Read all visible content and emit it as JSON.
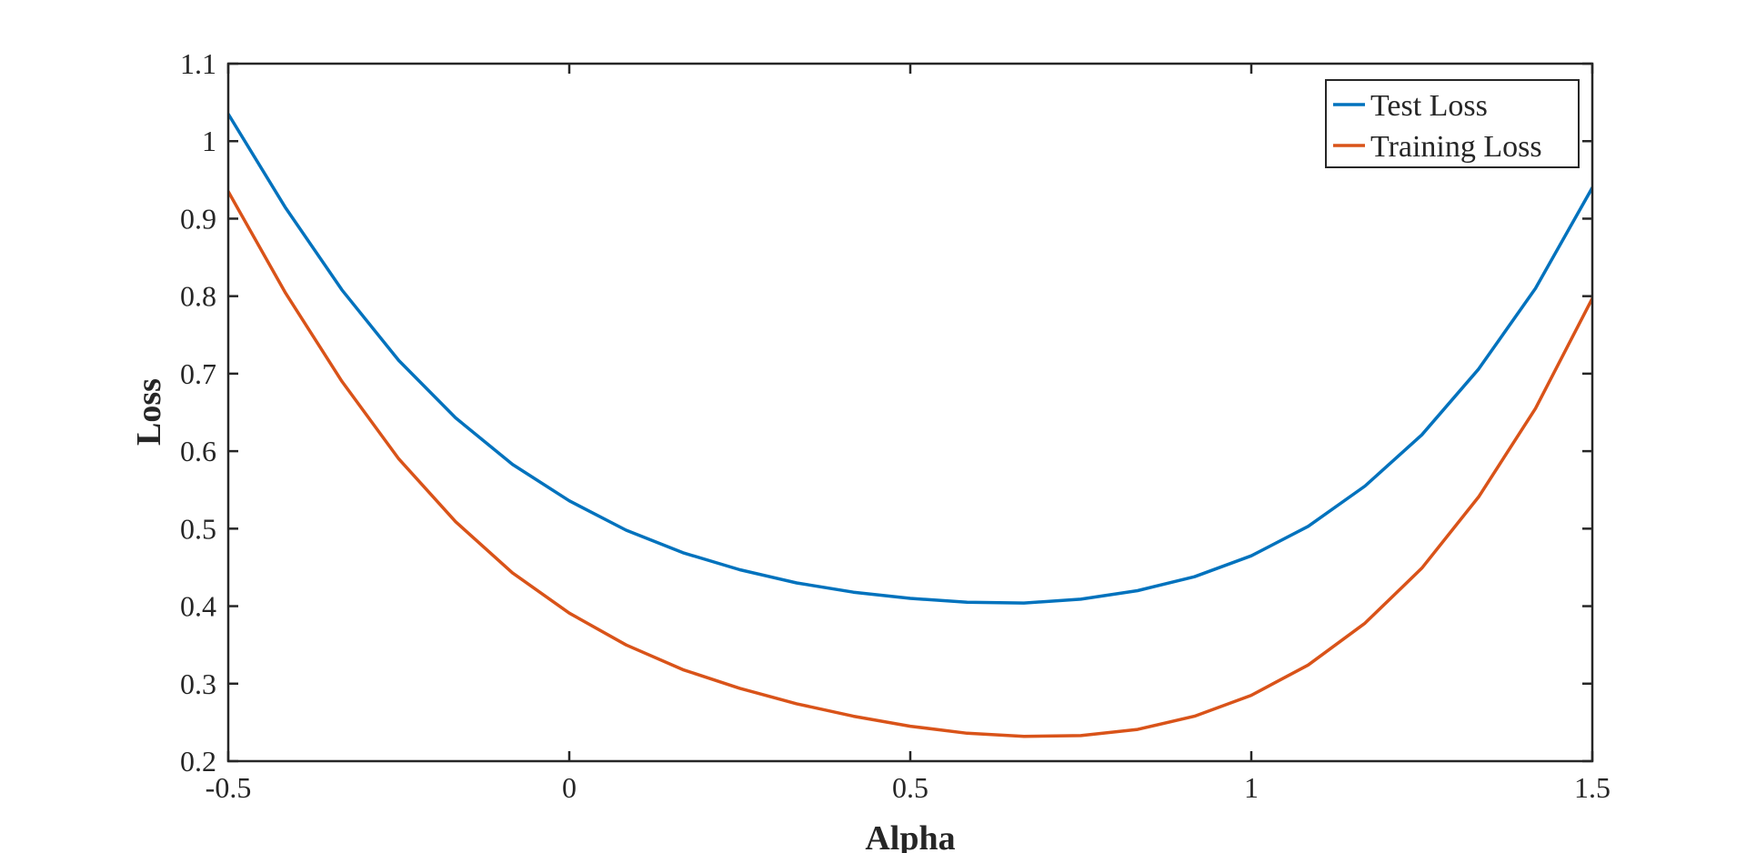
{
  "chart_data": {
    "type": "line",
    "title": "",
    "xlabel": "Alpha",
    "ylabel": "Loss",
    "xlim": [
      -0.5,
      1.5
    ],
    "ylim": [
      0.2,
      1.1
    ],
    "xticks": [
      -0.5,
      0,
      0.5,
      1,
      1.5
    ],
    "xtick_labels": [
      "-0.5",
      "0",
      "0.5",
      "1",
      "1.5"
    ],
    "yticks": [
      0.2,
      0.3,
      0.4,
      0.5,
      0.6,
      0.7,
      0.8,
      0.9,
      1.0,
      1.1
    ],
    "ytick_labels": [
      "0.2",
      "0.3",
      "0.4",
      "0.5",
      "0.6",
      "0.7",
      "0.8",
      "0.9",
      "1",
      "1.1"
    ],
    "grid": false,
    "legend_position": "top-right",
    "x": [
      -0.5,
      -0.4167,
      -0.3333,
      -0.25,
      -0.1667,
      -0.0833,
      0,
      0.0833,
      0.1667,
      0.25,
      0.3333,
      0.4167,
      0.5,
      0.5833,
      0.6667,
      0.75,
      0.8333,
      0.9167,
      1.0,
      1.0833,
      1.1667,
      1.25,
      1.3333,
      1.4167,
      1.5
    ],
    "series": [
      {
        "name": "Test Loss",
        "color": "#0072BD",
        "values": [
          1.035,
          0.915,
          0.808,
          0.717,
          0.643,
          0.583,
          0.536,
          0.498,
          0.469,
          0.447,
          0.43,
          0.418,
          0.41,
          0.405,
          0.404,
          0.409,
          0.42,
          0.438,
          0.465,
          0.503,
          0.555,
          0.621,
          0.706,
          0.81,
          0.94
        ]
      },
      {
        "name": "Training Loss",
        "color": "#D95319",
        "values": [
          0.935,
          0.805,
          0.69,
          0.59,
          0.509,
          0.443,
          0.391,
          0.35,
          0.318,
          0.294,
          0.274,
          0.258,
          0.245,
          0.236,
          0.232,
          0.233,
          0.241,
          0.258,
          0.285,
          0.324,
          0.378,
          0.449,
          0.541,
          0.655,
          0.797
        ]
      }
    ]
  }
}
